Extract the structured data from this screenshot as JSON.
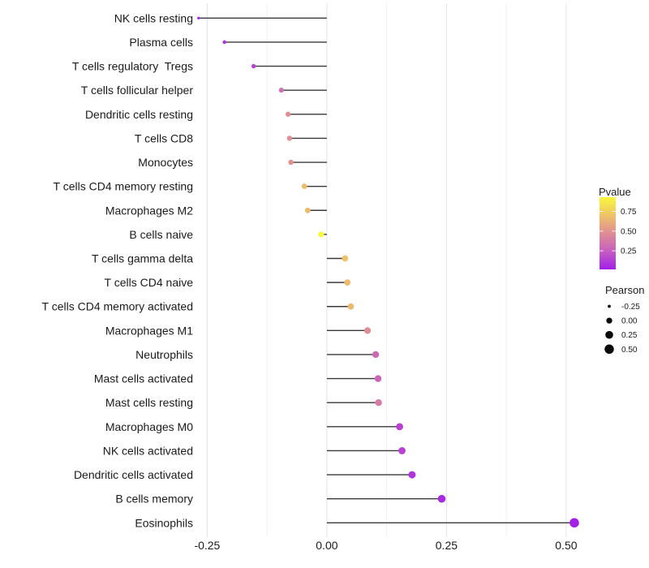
{
  "chart_data": {
    "type": "scatter",
    "variant": "lollipop",
    "orientation": "horizontal",
    "title": "",
    "xlabel": "",
    "ylabel": "",
    "grid": "vertical-only",
    "x_axis": {
      "range": [
        -0.31,
        0.556
      ],
      "ticks": [
        -0.25,
        0.0,
        0.25,
        0.5
      ],
      "tick_labels": [
        "-0.25",
        "0.00",
        "0.25",
        "0.50"
      ],
      "minor_ticks": [
        -0.125,
        0.125,
        0.375
      ]
    },
    "rows": [
      {
        "label": "NK cells resting",
        "pearson": -0.268,
        "pvalue": 0.05
      },
      {
        "label": "Plasma cells",
        "pearson": -0.214,
        "pvalue": 0.08
      },
      {
        "label": "T cells regulatory  Tregs",
        "pearson": -0.153,
        "pvalue": 0.14
      },
      {
        "label": "T cells follicular helper",
        "pearson": -0.095,
        "pvalue": 0.33
      },
      {
        "label": "Dendritic cells resting",
        "pearson": -0.081,
        "pvalue": 0.48
      },
      {
        "label": "T cells CD8",
        "pearson": -0.078,
        "pvalue": 0.48
      },
      {
        "label": "Monocytes",
        "pearson": -0.075,
        "pvalue": 0.49
      },
      {
        "label": "T cells CD4 memory resting",
        "pearson": -0.047,
        "pvalue": 0.68
      },
      {
        "label": "Macrophages M2",
        "pearson": -0.04,
        "pvalue": 0.67
      },
      {
        "label": "B cells naive",
        "pearson": -0.012,
        "pvalue": 0.93
      },
      {
        "label": "T cells gamma delta",
        "pearson": 0.038,
        "pvalue": 0.7
      },
      {
        "label": "T cells CD4 naive",
        "pearson": 0.043,
        "pvalue": 0.67
      },
      {
        "label": "T cells CD4 memory activated",
        "pearson": 0.05,
        "pvalue": 0.66
      },
      {
        "label": "Macrophages M1",
        "pearson": 0.085,
        "pvalue": 0.47
      },
      {
        "label": "Neutrophils",
        "pearson": 0.102,
        "pvalue": 0.3
      },
      {
        "label": "Mast cells activated",
        "pearson": 0.107,
        "pvalue": 0.28
      },
      {
        "label": "Mast cells resting",
        "pearson": 0.108,
        "pvalue": 0.38
      },
      {
        "label": "Macrophages M0",
        "pearson": 0.152,
        "pvalue": 0.14
      },
      {
        "label": "NK cells activated",
        "pearson": 0.157,
        "pvalue": 0.14
      },
      {
        "label": "Dendritic cells activated",
        "pearson": 0.178,
        "pvalue": 0.1
      },
      {
        "label": "B cells memory",
        "pearson": 0.24,
        "pvalue": 0.06
      },
      {
        "label": "Eosinophils",
        "pearson": 0.517,
        "pvalue": 0.02
      }
    ],
    "legends": {
      "pvalue": {
        "title": "Pvalue",
        "tick_values": [
          0.75,
          0.5,
          0.25
        ],
        "tick_labels": [
          "0.75",
          "0.50",
          "0.25"
        ],
        "bar_range": [
          0.015,
          0.93
        ],
        "gradient_stops": [
          {
            "p": 0.015,
            "color": "#A21FE8"
          },
          {
            "p": 0.25,
            "color": "#C75FC0"
          },
          {
            "p": 0.5,
            "color": "#E2938F"
          },
          {
            "p": 0.75,
            "color": "#F0CE5E"
          },
          {
            "p": 0.93,
            "color": "#F9F73C"
          }
        ]
      },
      "pearson": {
        "title": "Pearson",
        "items": [
          {
            "label": "-0.25",
            "value": -0.25
          },
          {
            "label": "0.00",
            "value": 0.0
          },
          {
            "label": "0.25",
            "value": 0.25
          },
          {
            "label": "0.50",
            "value": 0.5
          }
        ],
        "dot_color": "#0a0a0a"
      }
    },
    "colors": {
      "stick": "#3a3a3a",
      "grid_major": "#e4e4e4",
      "grid_minor": "#f1f1f1",
      "background": "#ffffff"
    }
  }
}
